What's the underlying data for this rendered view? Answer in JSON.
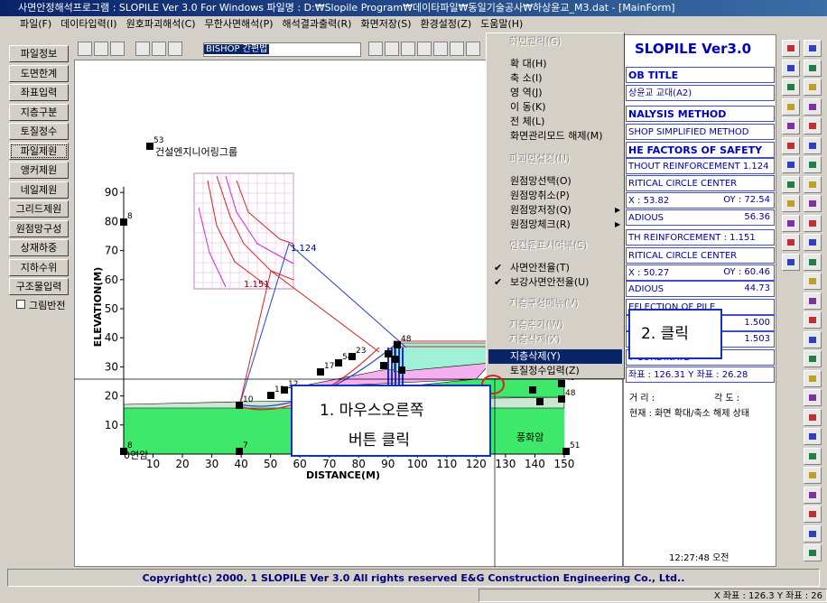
{
  "title_bar": "사면안정해석프로그램 : SLOPILE Ver 3.0 For Windows 파일명 : D:₩Slopile Program₩데이타파일₩동일기술공사₩하상윤교_M3.dat - [MainForm]",
  "menu": [
    "파일(F)",
    "데이타입력(I)",
    "원호파괴해석(C)",
    "무한사면해석(P)",
    "해석결과출력(R)",
    "화면저장(S)",
    "환경설정(Z)",
    "도움말(H)"
  ],
  "left_buttons": [
    "파일정보",
    "도면한계",
    "좌표입력",
    "지층구분",
    "토질정수",
    "파일제원",
    "앵커제원",
    "네일제원",
    "그리드제원",
    "원점망구성",
    "상재하중",
    "지하수위",
    "구조물입력"
  ],
  "checkbox": "그림반전",
  "toolbar_combo": "BISHOP 간편법",
  "context_menu": [
    {
      "label": "화면관리(G)",
      "state": "disabled"
    },
    {
      "label": "확 대(H)",
      "state": "normal"
    },
    {
      "label": "축 소(I)",
      "state": "normal"
    },
    {
      "label": "영 역(J)",
      "state": "normal"
    },
    {
      "label": "이 동(K)",
      "state": "normal"
    },
    {
      "label": "전 체(L)",
      "state": "normal"
    },
    {
      "label": "화면관리모드 해제(M)",
      "state": "normal"
    },
    {
      "label": "파괴면설정(N)",
      "state": "disabled"
    },
    {
      "label": "원점망선택(O)",
      "state": "normal"
    },
    {
      "label": "원점망취소(P)",
      "state": "normal"
    },
    {
      "label": "원점망저장(Q)",
      "state": "submenu"
    },
    {
      "label": "원점망체크(R)",
      "state": "submenu"
    },
    {
      "label": "안전율표시여부(S)",
      "state": "disabled"
    },
    {
      "label": "사면안전율(T)",
      "state": "checked"
    },
    {
      "label": "보강사면안전율(U)",
      "state": "checked"
    },
    {
      "label": "지층구성메뉴(V)",
      "state": "disabled"
    },
    {
      "label": "지층추가(W)",
      "state": "disabled"
    },
    {
      "label": "지층삭제(X)",
      "state": "disabled"
    },
    {
      "label": "지층삭제(Y)",
      "state": "highlighted"
    },
    {
      "label": "토질정수입력(Z)",
      "state": "normal"
    }
  ],
  "right_panel": {
    "title": "SLOPILE Ver3.0",
    "rows": [
      {
        "kind": "header",
        "text": "OB TITLE"
      },
      {
        "kind": "text",
        "text": "상윤교 교대(A2)"
      },
      {
        "kind": "header",
        "text": "NALYSIS METHOD"
      },
      {
        "kind": "text",
        "text": "SHOP SIMPLIFIED METHOD"
      },
      {
        "kind": "header",
        "text": "HE FACTORS OF SAFETY"
      },
      {
        "kind": "text",
        "text": "THOUT REINFORCEMENT 1.124"
      },
      {
        "kind": "text",
        "text": "RITICAL CIRCLE CENTER"
      },
      {
        "kind": "pair",
        "text": "X : 53.82",
        "right": "OY : 72.54"
      },
      {
        "kind": "pair",
        "text": "ADIOUS",
        "right": "56.36"
      },
      {
        "kind": "text",
        "text": "TH REINFORCEMENT   : 1.151"
      },
      {
        "kind": "text",
        "text": "RITICAL CIRCLE CENTER"
      },
      {
        "kind": "pair",
        "text": "X : 50.27",
        "right": "OY : 60.46"
      },
      {
        "kind": "pair",
        "text": "ADIOUS",
        "right": "44.73"
      },
      {
        "kind": "text",
        "text": "EFLECTION OF PILE"
      },
      {
        "kind": "pair",
        "text": ":",
        "right": "1.500"
      },
      {
        "kind": "pair",
        "text": "X :",
        "right": "1.503"
      },
      {
        "kind": "text",
        "text": "Y CORDINATE"
      },
      {
        "kind": "text",
        "text": "좌표 :  126.31   Y 좌표 :  26.28"
      }
    ],
    "distance": "거  리 :",
    "angle": "각  도 :",
    "status": "현재 : 화면 확대/축소 해제 상태",
    "clock": "12:27:48 오전"
  },
  "plot": {
    "xlabel": "DISTANCE(M)",
    "ylabel": "ELEVATION(M)",
    "xticks": [
      10,
      20,
      30,
      40,
      50,
      60,
      70,
      80,
      90,
      100,
      110,
      120,
      130,
      140,
      150
    ],
    "yticks": [
      10,
      20,
      30,
      40,
      50,
      60,
      70,
      80,
      90
    ],
    "company": "건설엔지니어링그룹",
    "fs_unreinforced": "1.124",
    "fs_reinforced": "1.151",
    "rock": "풍화암",
    "origin_label": "0연암",
    "nodes": [
      "53",
      "8",
      "10",
      "11",
      "12",
      "17",
      "23",
      "54",
      "48",
      "49",
      "48",
      "51",
      "7",
      "8"
    ]
  },
  "callouts": [
    "1.  마우스오른쪽",
    "버튼  클릭",
    "2.  클릭"
  ],
  "footer": "Copyright(c) 2000. 1 SLOPILE Ver 3.0 All rights reserved E&G Construction Engineering Co., Ltd..",
  "status_bar": "X 좌표 : 126.3 Y 좌표 :  26"
}
